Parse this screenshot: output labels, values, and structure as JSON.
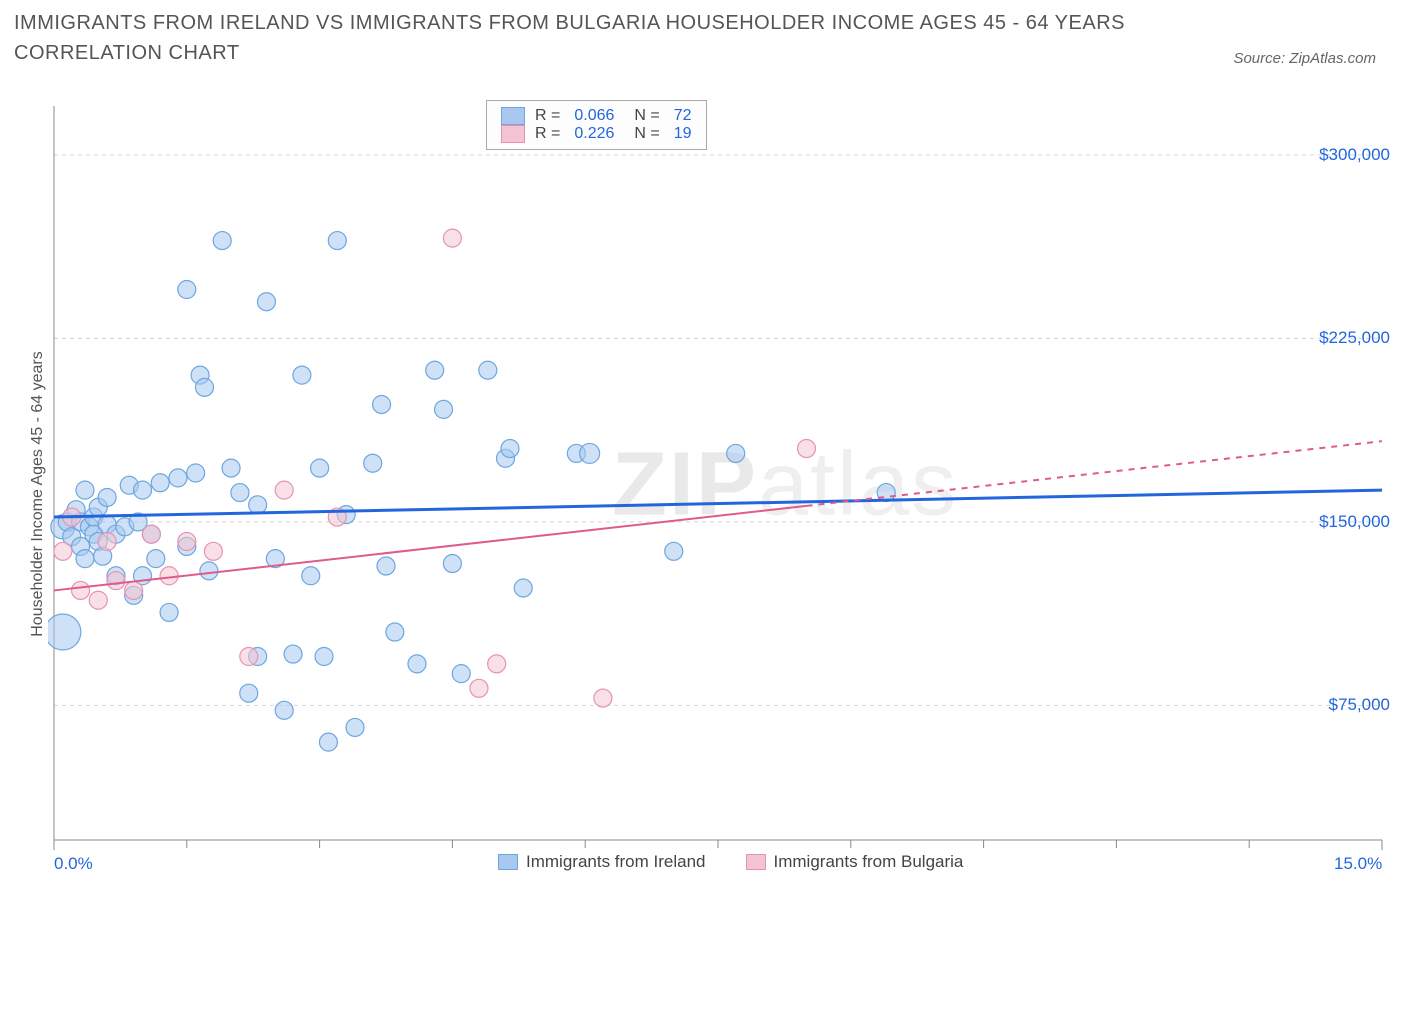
{
  "title": "IMMIGRANTS FROM IRELAND VS IMMIGRANTS FROM BULGARIA HOUSEHOLDER INCOME AGES 45 - 64 YEARS CORRELATION CHART",
  "source": "Source: ZipAtlas.com",
  "watermark_a": "ZIP",
  "watermark_b": "atlas",
  "ylabel": "Householder Income Ages 45 - 64 years",
  "chart": {
    "type": "scatter",
    "xlim": [
      0,
      15
    ],
    "ylim": [
      20000,
      320000
    ],
    "x_ticks": [
      0,
      15
    ],
    "x_tick_labels": [
      "0.0%",
      "15.0%"
    ],
    "x_minor_ticks": [
      1.5,
      3.0,
      4.5,
      6.0,
      7.5,
      9.0,
      10.5,
      12.0,
      13.5
    ],
    "y_ticks": [
      75000,
      150000,
      225000,
      300000
    ],
    "y_tick_labels": [
      "$75,000",
      "$150,000",
      "$225,000",
      "$300,000"
    ],
    "grid_color": "#d8d8d8",
    "axis_color": "#888888",
    "background_color": "#ffffff",
    "marker_radius": 9,
    "marker_opacity": 0.55,
    "series": [
      {
        "name": "Immigrants from Ireland",
        "color_fill": "#a8c8ef",
        "color_stroke": "#6da6e0",
        "trend_color": "#2266dd",
        "trend_width": 3,
        "trend_dash": "none",
        "trend": {
          "x1": 0,
          "y1": 152000,
          "x2": 15,
          "y2": 163000
        },
        "r": "0.066",
        "n": "72",
        "points": [
          [
            0.1,
            148000,
            12
          ],
          [
            0.1,
            105000,
            18
          ],
          [
            0.15,
            150000,
            9
          ],
          [
            0.2,
            144000,
            9
          ],
          [
            0.25,
            155000,
            9
          ],
          [
            0.3,
            140000,
            9
          ],
          [
            0.3,
            150000,
            9
          ],
          [
            0.35,
            163000,
            9
          ],
          [
            0.35,
            135000,
            9
          ],
          [
            0.4,
            148000,
            9
          ],
          [
            0.45,
            152000,
            9
          ],
          [
            0.45,
            145000,
            9
          ],
          [
            0.5,
            156000,
            9
          ],
          [
            0.5,
            142000,
            9
          ],
          [
            0.55,
            136000,
            9
          ],
          [
            0.6,
            149000,
            9
          ],
          [
            0.6,
            160000,
            9
          ],
          [
            0.7,
            145000,
            9
          ],
          [
            0.7,
            128000,
            9
          ],
          [
            0.8,
            148000,
            9
          ],
          [
            0.85,
            165000,
            9
          ],
          [
            0.9,
            120000,
            9
          ],
          [
            0.95,
            150000,
            9
          ],
          [
            1.0,
            163000,
            9
          ],
          [
            1.0,
            128000,
            9
          ],
          [
            1.1,
            145000,
            9
          ],
          [
            1.15,
            135000,
            9
          ],
          [
            1.2,
            166000,
            9
          ],
          [
            1.3,
            113000,
            9
          ],
          [
            1.4,
            168000,
            9
          ],
          [
            1.5,
            245000,
            9
          ],
          [
            1.5,
            140000,
            9
          ],
          [
            1.6,
            170000,
            9
          ],
          [
            1.65,
            210000,
            9
          ],
          [
            1.7,
            205000,
            9
          ],
          [
            1.75,
            130000,
            9
          ],
          [
            1.9,
            265000,
            9
          ],
          [
            2.0,
            172000,
            9
          ],
          [
            2.1,
            162000,
            9
          ],
          [
            2.2,
            80000,
            9
          ],
          [
            2.3,
            95000,
            9
          ],
          [
            2.3,
            157000,
            9
          ],
          [
            2.4,
            240000,
            9
          ],
          [
            2.5,
            135000,
            9
          ],
          [
            2.6,
            73000,
            9
          ],
          [
            2.7,
            96000,
            9
          ],
          [
            2.8,
            210000,
            9
          ],
          [
            2.9,
            128000,
            9
          ],
          [
            3.0,
            172000,
            9
          ],
          [
            3.05,
            95000,
            9
          ],
          [
            3.1,
            60000,
            9
          ],
          [
            3.2,
            265000,
            9
          ],
          [
            3.3,
            153000,
            9
          ],
          [
            3.4,
            66000,
            9
          ],
          [
            3.6,
            174000,
            9
          ],
          [
            3.7,
            198000,
            9
          ],
          [
            3.75,
            132000,
            9
          ],
          [
            3.85,
            105000,
            9
          ],
          [
            4.1,
            92000,
            9
          ],
          [
            4.3,
            212000,
            9
          ],
          [
            4.4,
            196000,
            9
          ],
          [
            4.5,
            133000,
            9
          ],
          [
            4.6,
            88000,
            9
          ],
          [
            4.9,
            212000,
            9
          ],
          [
            5.1,
            176000,
            9
          ],
          [
            5.15,
            180000,
            9
          ],
          [
            5.3,
            123000,
            9
          ],
          [
            5.9,
            178000,
            9
          ],
          [
            6.05,
            178000,
            10
          ],
          [
            7.0,
            138000,
            9
          ],
          [
            7.7,
            178000,
            9
          ],
          [
            9.4,
            162000,
            9
          ]
        ]
      },
      {
        "name": "Immigrants from Bulgaria",
        "color_fill": "#f4c4d2",
        "color_stroke": "#e594b0",
        "trend_color": "#e05a8a",
        "trend_width": 2,
        "trend_dash": "mixed",
        "trend": {
          "x1": 0,
          "y1": 122000,
          "x2": 15,
          "y2": 183000
        },
        "r": "0.226",
        "n": "19",
        "points": [
          [
            0.1,
            138000,
            9
          ],
          [
            0.2,
            152000,
            9
          ],
          [
            0.3,
            122000,
            9
          ],
          [
            0.5,
            118000,
            9
          ],
          [
            0.6,
            142000,
            9
          ],
          [
            0.7,
            126000,
            9
          ],
          [
            0.9,
            122000,
            9
          ],
          [
            1.1,
            145000,
            9
          ],
          [
            1.3,
            128000,
            9
          ],
          [
            1.5,
            142000,
            9
          ],
          [
            1.8,
            138000,
            9
          ],
          [
            2.2,
            95000,
            9
          ],
          [
            2.6,
            163000,
            9
          ],
          [
            3.2,
            152000,
            9
          ],
          [
            4.5,
            266000,
            9
          ],
          [
            4.8,
            82000,
            9
          ],
          [
            5.0,
            92000,
            9
          ],
          [
            6.2,
            78000,
            9
          ],
          [
            8.5,
            180000,
            9
          ]
        ]
      }
    ]
  },
  "legend_top": {
    "rows": [
      {
        "swatch_fill": "#a8c8ef",
        "swatch_stroke": "#6da6e0",
        "r_label": "R =",
        "r_val": "0.066",
        "n_label": "N =",
        "n_val": "72"
      },
      {
        "swatch_fill": "#f4c4d2",
        "swatch_stroke": "#e594b0",
        "r_label": "R =",
        "r_val": "0.226",
        "n_label": "N =",
        "n_val": "19"
      }
    ]
  },
  "legend_bottom": {
    "items": [
      {
        "swatch_fill": "#a8c8ef",
        "swatch_stroke": "#6da6e0",
        "label": "Immigrants from Ireland"
      },
      {
        "swatch_fill": "#f4c4d2",
        "swatch_stroke": "#e594b0",
        "label": "Immigrants from Bulgaria"
      }
    ]
  }
}
